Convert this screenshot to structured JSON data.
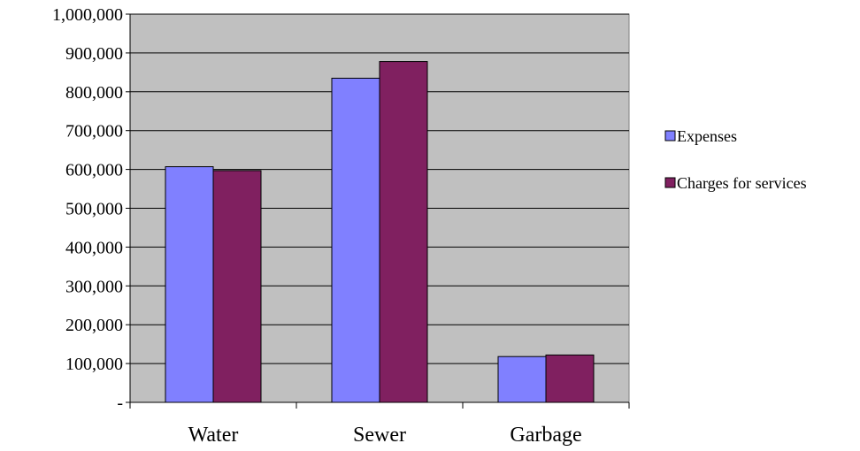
{
  "chart_data": {
    "type": "bar",
    "categories": [
      "Water",
      "Sewer",
      "Garbage"
    ],
    "series": [
      {
        "name": "Expenses",
        "values": [
          607000,
          835000,
          118000
        ],
        "color": "#8080ff"
      },
      {
        "name": "Charges for services",
        "values": [
          597000,
          878000,
          122000
        ],
        "color": "#802060"
      }
    ],
    "ylim": [
      0,
      1000000
    ],
    "ytick_step": 100000,
    "ytick_labels": [
      "-",
      "100,000",
      "200,000",
      "300,000",
      "400,000",
      "500,000",
      "600,000",
      "700,000",
      "800,000",
      "900,000",
      "1,000,000"
    ],
    "title": "",
    "xlabel": "",
    "ylabel": "",
    "grid": true,
    "legend_position": "right",
    "plot_background": "#c0c0c0"
  }
}
